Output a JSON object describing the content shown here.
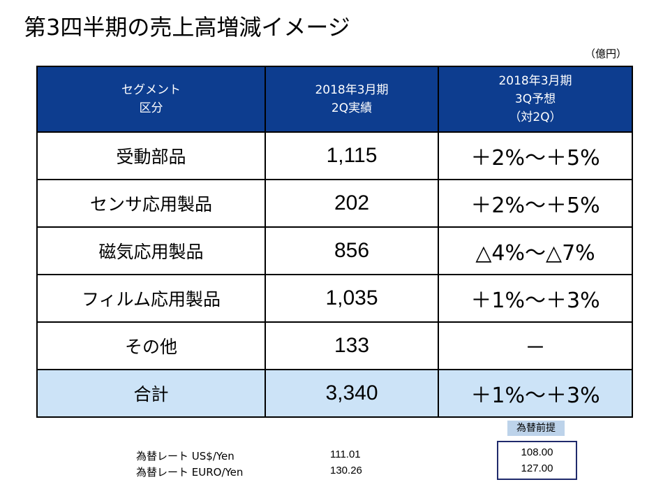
{
  "title": "第3四半期の売上高増減イメージ",
  "unit": "（億円）",
  "table": {
    "headers": [
      [
        "セグメント",
        "区分"
      ],
      [
        "2018年3月期",
        "2Q実績"
      ],
      [
        "2018年3月期",
        "3Q予想",
        "（対2Q）"
      ]
    ],
    "rows": [
      {
        "segment": "受動部品",
        "actual": "1,115",
        "forecast": "＋2%～＋5%"
      },
      {
        "segment": "センサ応用製品",
        "actual": "202",
        "forecast": "＋2%～＋5%"
      },
      {
        "segment": "磁気応用製品",
        "actual": "856",
        "forecast": "△4%～△7%"
      },
      {
        "segment": "フィルム応用製品",
        "actual": "1,035",
        "forecast": "＋1%～＋3%"
      },
      {
        "segment": "その他",
        "actual": "133",
        "forecast": "－"
      }
    ],
    "total": {
      "segment": "合計",
      "actual": "3,340",
      "forecast": "＋1%～＋3%"
    }
  },
  "fx": {
    "assumption_label": "為替前提",
    "rates": [
      {
        "name": "為替レート US$/Yen",
        "actual": "111.01",
        "assumption": "108.00"
      },
      {
        "name": "為替レート EURO/Yen",
        "actual": "130.26",
        "assumption": "127.00"
      }
    ]
  }
}
